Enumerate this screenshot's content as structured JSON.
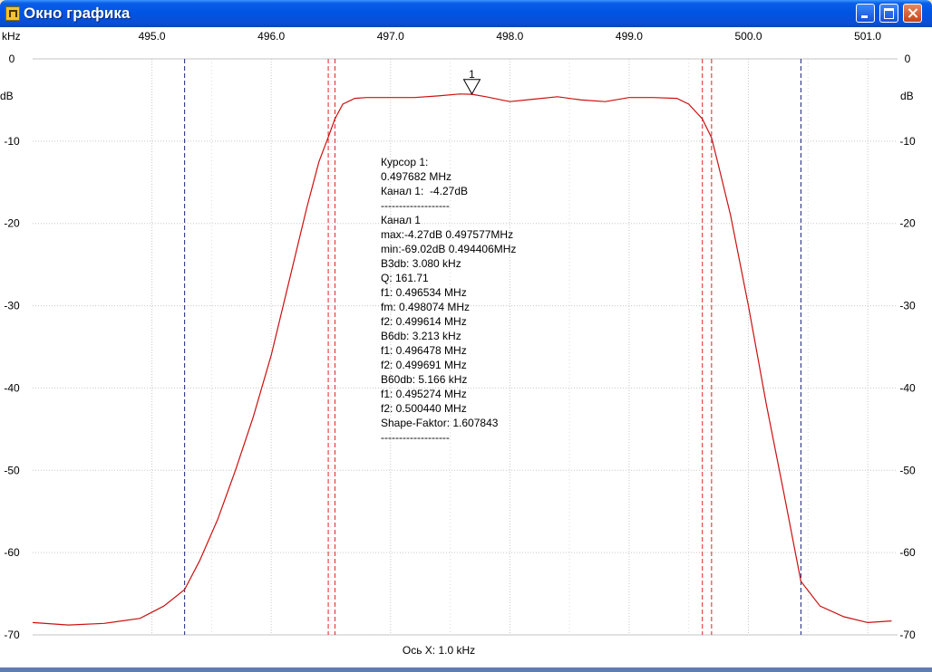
{
  "window": {
    "title": "Окно графика",
    "icon": "graph-app-icon",
    "buttons": [
      "minimize-icon",
      "maximize-icon",
      "close-icon"
    ]
  },
  "chart_data": {
    "type": "line",
    "x_unit": "kHz",
    "y_unit": "dB",
    "xlim": [
      494.0,
      501.25
    ],
    "ylim": [
      -70,
      0
    ],
    "x_ticks": [
      "495.0",
      "496.0",
      "497.0",
      "498.0",
      "499.0",
      "500.0",
      "501.0"
    ],
    "y_ticks": [
      "0",
      "-10",
      "-20",
      "-30",
      "-40",
      "-50",
      "-60",
      "-70"
    ],
    "x_axis_caption": "Ось X: 1.0 kHz",
    "grid": true,
    "series": [
      {
        "color": "#cc1010",
        "x": [
          494.0,
          494.3,
          494.6,
          494.9,
          495.1,
          495.274,
          495.4,
          495.55,
          495.7,
          495.85,
          496.0,
          496.15,
          496.3,
          496.4,
          496.478,
          496.534,
          496.6,
          496.7,
          496.8,
          496.9,
          497.0,
          497.2,
          497.4,
          497.577,
          497.682,
          497.8,
          498.0,
          498.2,
          498.4,
          498.6,
          498.8,
          499.0,
          499.2,
          499.4,
          499.5,
          499.614,
          499.691,
          499.75,
          499.85,
          500.0,
          500.15,
          500.3,
          500.44,
          500.6,
          500.8,
          501.0,
          501.2
        ],
        "y": [
          -68.5,
          -68.8,
          -68.6,
          -68.0,
          -66.5,
          -64.5,
          -61.0,
          -56.0,
          -50.0,
          -43.5,
          -36.0,
          -27.0,
          -18.0,
          -12.5,
          -9.5,
          -7.3,
          -5.5,
          -4.8,
          -4.7,
          -4.7,
          -4.7,
          -4.7,
          -4.5,
          -4.27,
          -4.3,
          -4.6,
          -5.2,
          -4.9,
          -4.6,
          -5.0,
          -5.2,
          -4.7,
          -4.7,
          -4.8,
          -5.5,
          -7.3,
          -9.6,
          -13.0,
          -19.0,
          -30.0,
          -42.0,
          -53.0,
          -63.5,
          -66.5,
          -67.8,
          -68.5,
          -68.3
        ]
      }
    ],
    "cursor": {
      "label": "1",
      "x": 497.682,
      "y": -4.27
    },
    "markers": [
      {
        "x": 495.274,
        "color": "#1a237e",
        "style": "dashed"
      },
      {
        "x": 500.44,
        "color": "#1a237e",
        "style": "dashed"
      },
      {
        "x": 496.478,
        "color": "#e02020",
        "style": "dashed"
      },
      {
        "x": 496.534,
        "color": "#e02020",
        "style": "dashed"
      },
      {
        "x": 499.614,
        "color": "#e02020",
        "style": "dashed"
      },
      {
        "x": 499.691,
        "color": "#e02020",
        "style": "dashed"
      }
    ]
  },
  "readout": {
    "lines": [
      "Курсор 1:",
      "0.497682 MHz",
      "Канал 1:  -4.27dB",
      "-------------------",
      "Канал 1",
      "max:-4.27dB 0.497577MHz",
      "min:-69.02dB 0.494406MHz",
      "B3db: 3.080 kHz",
      "Q: 161.71",
      "f1: 0.496534 MHz",
      "fm: 0.498074 MHz",
      "f2: 0.499614 MHz",
      "B6db: 3.213 kHz",
      "f1: 0.496478 MHz",
      "f2: 0.499691 MHz",
      "B60db: 5.166 kHz",
      "f1: 0.495274 MHz",
      "f2: 0.500440 MHz",
      "Shape-Faktor: 1.607843",
      "-------------------"
    ]
  }
}
